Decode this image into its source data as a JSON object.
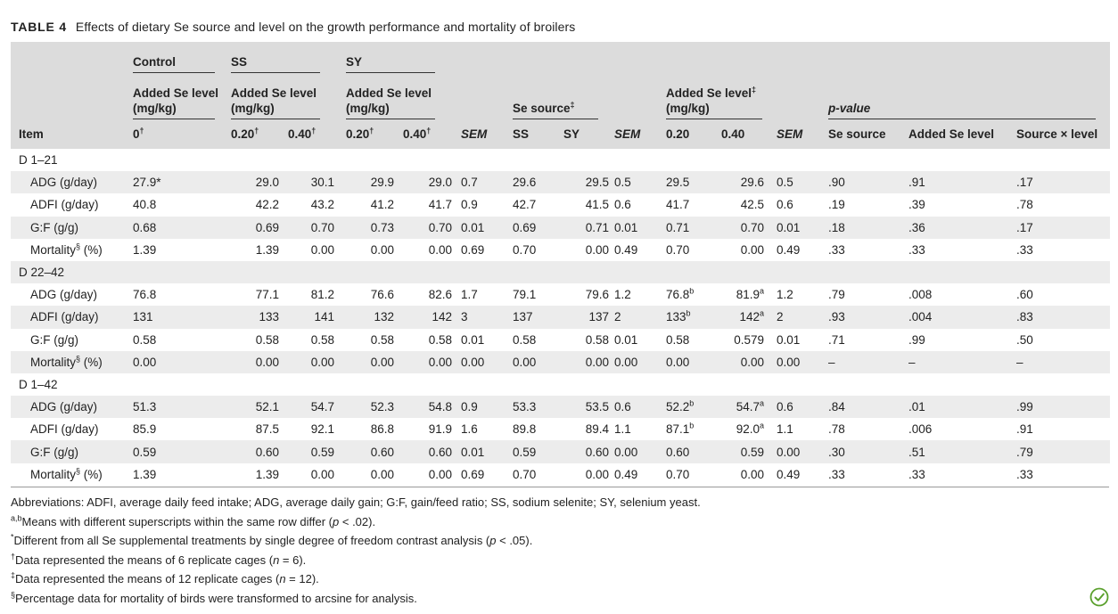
{
  "caption": {
    "label": "TABLE 4",
    "text": "Effects of dietary Se source and level on the growth performance and mortality of broilers"
  },
  "header": {
    "control": "Control",
    "ss": "SS",
    "sy": "SY",
    "added_se_level_line1": "Added Se level",
    "added_se_level_line2": "(mg/kg)",
    "se_source": "Se source",
    "se_source_sup": "‡",
    "added_se_level_sup": "‡",
    "pvalue": "p-value",
    "item": "Item",
    "c0": "0",
    "c0_sup": "†",
    "ss020": "0.20",
    "ss040": "0.40",
    "sy020": "0.20",
    "sy040": "0.40",
    "sup_dag": "†",
    "sem": "SEM",
    "col_ss": "SS",
    "col_sy": "SY",
    "lvl020": "0.20",
    "lvl040": "0.40",
    "p_source": "Se source",
    "p_level": "Added Se level",
    "p_inter": "Source × level"
  },
  "sections": [
    {
      "title": "D 1–21",
      "rows": [
        {
          "item": "ADG (g/day)",
          "item_sup": "",
          "v": [
            "27.9*",
            "29.0",
            "30.1",
            "29.9",
            "29.0",
            "0.7",
            "29.6",
            "29.5",
            "0.5",
            "29.5",
            "29.6",
            "0.5",
            ".90",
            ".91",
            ".17"
          ]
        },
        {
          "item": "ADFI (g/day)",
          "item_sup": "",
          "v": [
            "40.8",
            "42.2",
            "43.2",
            "41.2",
            "41.7",
            "0.9",
            "42.7",
            "41.5",
            "0.6",
            "41.7",
            "42.5",
            "0.6",
            ".19",
            ".39",
            ".78"
          ]
        },
        {
          "item": "G:F (g/g)",
          "item_sup": "",
          "v": [
            "0.68",
            "0.69",
            "0.70",
            "0.73",
            "0.70",
            "0.01",
            "0.69",
            "0.71",
            "0.01",
            "0.71",
            "0.70",
            "0.01",
            ".18",
            ".36",
            ".17"
          ]
        },
        {
          "item": "Mortality",
          "item_sup": "§",
          "item_unit": " (%)",
          "v": [
            "1.39",
            "1.39",
            "0.00",
            "0.00",
            "0.00",
            "0.69",
            "0.70",
            "0.00",
            "0.49",
            "0.70",
            "0.00",
            "0.49",
            ".33",
            ".33",
            ".33"
          ]
        }
      ]
    },
    {
      "title": "D 22–42",
      "rows": [
        {
          "item": "ADG (g/day)",
          "item_sup": "",
          "v": [
            "76.8",
            "77.1",
            "81.2",
            "76.6",
            "82.6",
            "1.7",
            "79.1",
            "79.6",
            "1.2",
            "76.8",
            "81.9",
            "1.2",
            ".79",
            ".008",
            ".60"
          ],
          "sup9": "b",
          "sup10": "a"
        },
        {
          "item": "ADFI (g/day)",
          "item_sup": "",
          "v": [
            "131",
            "133",
            "141",
            "132",
            "142",
            "3",
            "137",
            "137",
            "2",
            "133",
            "142",
            "2",
            ".93",
            ".004",
            ".83"
          ],
          "sup9": "b",
          "sup10": "a"
        },
        {
          "item": "G:F (g/g)",
          "item_sup": "",
          "v": [
            "0.58",
            "0.58",
            "0.58",
            "0.58",
            "0.58",
            "0.01",
            "0.58",
            "0.58",
            "0.01",
            "0.58",
            "0.579",
            "0.01",
            ".71",
            ".99",
            ".50"
          ]
        },
        {
          "item": "Mortality",
          "item_sup": "§",
          "item_unit": " (%)",
          "v": [
            "0.00",
            "0.00",
            "0.00",
            "0.00",
            "0.00",
            "0.00",
            "0.00",
            "0.00",
            "0.00",
            "0.00",
            "0.00",
            "0.00",
            "–",
            "–",
            "–"
          ]
        }
      ]
    },
    {
      "title": "D 1–42",
      "rows": [
        {
          "item": "ADG (g/day)",
          "item_sup": "",
          "v": [
            "51.3",
            "52.1",
            "54.7",
            "52.3",
            "54.8",
            "0.9",
            "53.3",
            "53.5",
            "0.6",
            "52.2",
            "54.7",
            "0.6",
            ".84",
            ".01",
            ".99"
          ],
          "sup9": "b",
          "sup10": "a"
        },
        {
          "item": "ADFI (g/day)",
          "item_sup": "",
          "v": [
            "85.9",
            "87.5",
            "92.1",
            "86.8",
            "91.9",
            "1.6",
            "89.8",
            "89.4",
            "1.1",
            "87.1",
            "92.0",
            "1.1",
            ".78",
            ".006",
            ".91"
          ],
          "sup9": "b",
          "sup10": "a"
        },
        {
          "item": "G:F (g/g)",
          "item_sup": "",
          "v": [
            "0.59",
            "0.60",
            "0.59",
            "0.60",
            "0.60",
            "0.01",
            "0.59",
            "0.60",
            "0.00",
            "0.60",
            "0.59",
            "0.00",
            ".30",
            ".51",
            ".79"
          ]
        },
        {
          "item": "Mortality",
          "item_sup": "§",
          "item_unit": " (%)",
          "v": [
            "1.39",
            "1.39",
            "0.00",
            "0.00",
            "0.00",
            "0.69",
            "0.70",
            "0.00",
            "0.49",
            "0.70",
            "0.00",
            "0.49",
            ".33",
            ".33",
            ".33"
          ]
        }
      ]
    }
  ],
  "notes": {
    "abbrev": "Abbreviations: ADFI, average daily feed intake; ADG, average daily gain; G:F, gain/feed ratio; SS, sodium selenite; SY, selenium yeast.",
    "n1_sup": "a,b",
    "n1_pre": "Means with different superscripts within the same row differ (",
    "n1_p": "p",
    "n1_post": " < .02).",
    "n2_sup": "*",
    "n2_pre": "Different from all Se supplemental treatments by single degree of freedom contrast analysis (",
    "n2_p": "p",
    "n2_post": " < .05).",
    "n3_sup": "†",
    "n3_pre": "Data represented the means of 6 replicate cages (",
    "n3_n": "n",
    "n3_post": " = 6).",
    "n4_sup": "‡",
    "n4_pre": "Data represented the means of 12 replicate cages (",
    "n4_n": "n",
    "n4_post": " = 12).",
    "n5_sup": "§",
    "n5_text": "Percentage data for mortality of birds were transformed to arcsine for analysis."
  },
  "logo_icon": "open-access-check-icon",
  "colors": {
    "header_bg": "#dcdcdc",
    "stripe_bg": "#ececec",
    "logo_green": "#5aa02c"
  }
}
